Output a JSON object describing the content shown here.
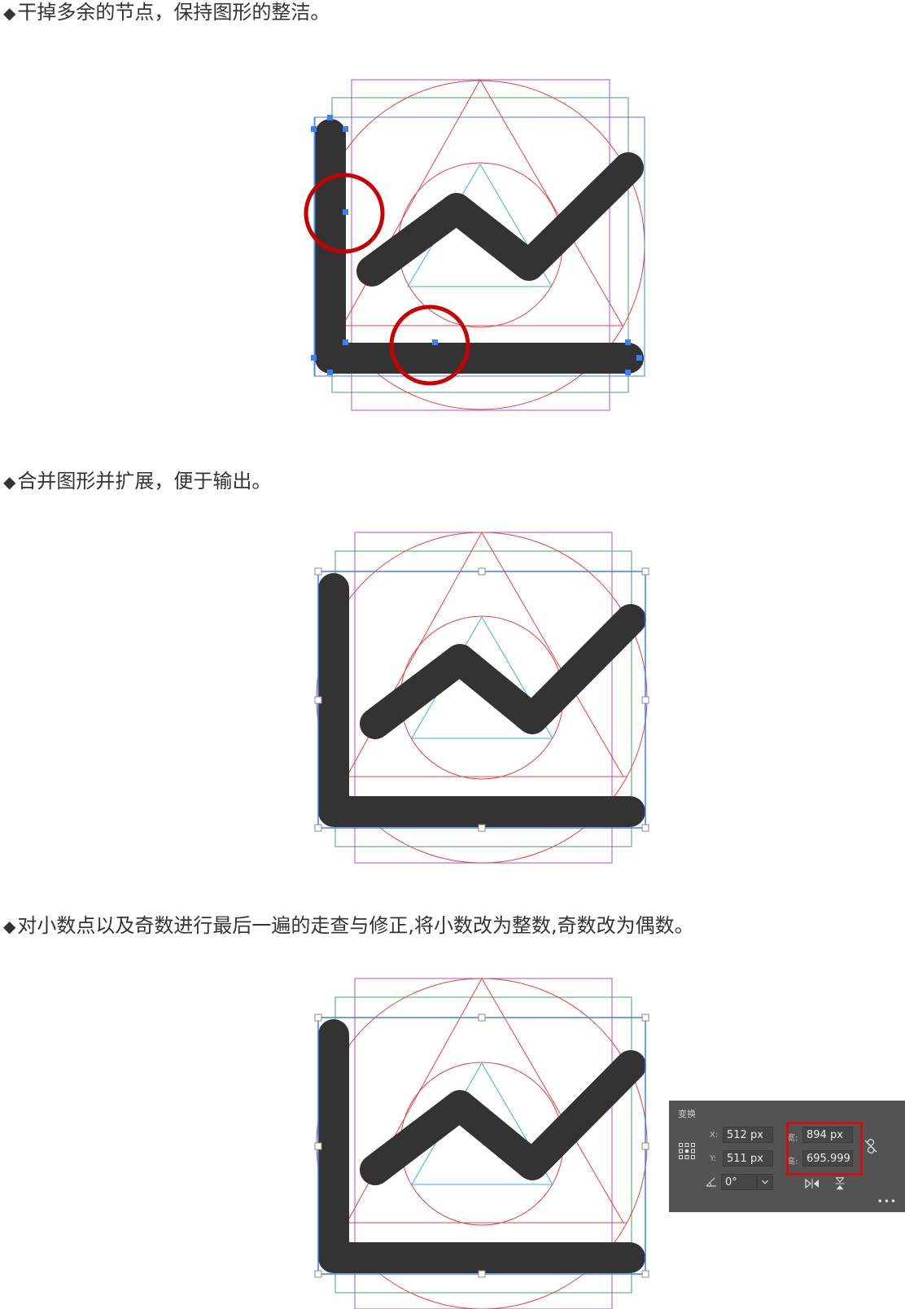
{
  "captions": {
    "step1": "干掉多余的节点，保持图形的整洁。",
    "step2": "合并图形并扩展，便于输出。",
    "step3": "对小数点以及奇数进行最后一遍的走查与修正,将小数改为整数,奇数改为偶数。",
    "bullet": "◆"
  },
  "colors": {
    "icon": "#333333",
    "selection": "#3d7ff5",
    "guide_red": "#e84040",
    "guide_green": "#3aa860",
    "guide_purple": "#b24ee0",
    "guide_cyan": "#3ab0e0",
    "highlight": "#c80000",
    "panel_bg": "#535353"
  },
  "transform_panel": {
    "title": "变换",
    "x_label": "X:",
    "x_value": "512 px",
    "y_label": "Y:",
    "y_value": "511 px",
    "width_label": "宽:",
    "width_value": "894 px",
    "height_label": "高:",
    "height_value": "695.999",
    "angle_value": "0°",
    "icons": [
      "reference-point-icon",
      "angle-icon",
      "dropdown-icon",
      "link-constrain-icon",
      "flip-horizontal-icon",
      "flip-vertical-icon",
      "more-icon"
    ]
  }
}
